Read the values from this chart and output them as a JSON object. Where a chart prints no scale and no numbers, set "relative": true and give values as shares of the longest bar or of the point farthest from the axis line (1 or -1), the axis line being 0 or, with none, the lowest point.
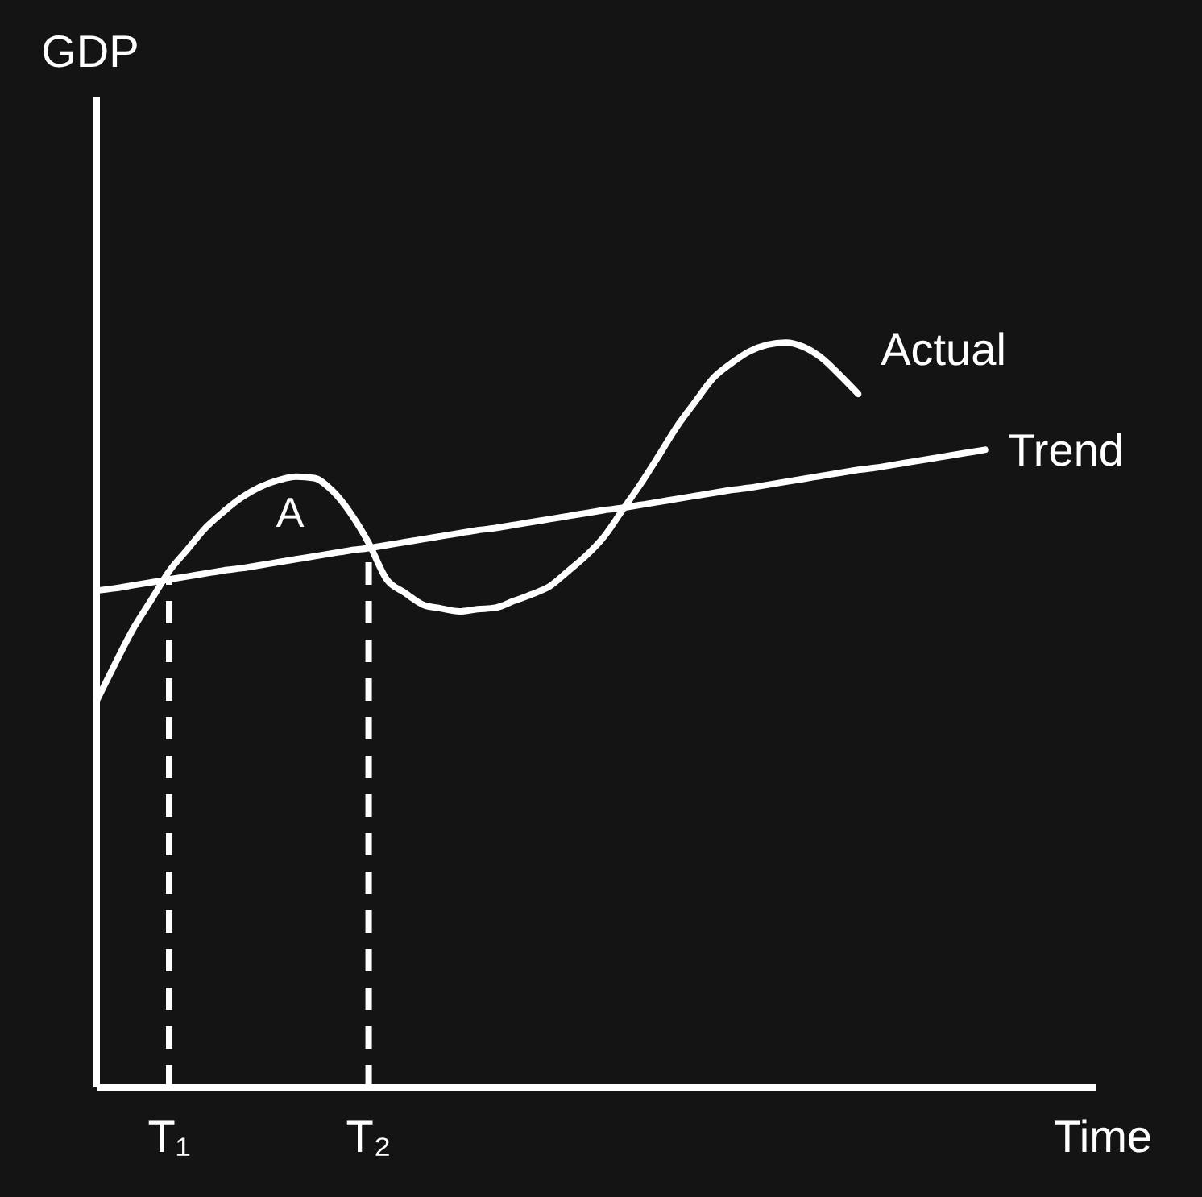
{
  "chart_data": {
    "type": "line",
    "relative": true,
    "xlabel": "Time",
    "categories": [
      null,
      null,
      null,
      null,
      "T₁",
      null,
      null,
      null,
      null,
      null,
      null,
      null,
      null,
      null,
      null,
      "T₂",
      null,
      null,
      null,
      null,
      null,
      null,
      null,
      null,
      null,
      null,
      null,
      null,
      null,
      null,
      null,
      null,
      null,
      null,
      null,
      null,
      null,
      null,
      null,
      null,
      null,
      null,
      null,
      null,
      null,
      null,
      null,
      null,
      null,
      null,
      null,
      null,
      null,
      null,
      null,
      null
    ],
    "grid": false,
    "legend": false,
    "marker": "none",
    "series": [
      {
        "name": "Actual",
        "color": "#ffffff",
        "values": [
          0.519,
          0.568,
          0.615,
          0.654,
          0.693,
          0.722,
          0.751,
          0.773,
          0.792,
          0.806,
          0.815,
          0.82,
          0.818,
          0.801,
          0.771,
          0.731,
          0.682,
          0.664,
          0.648,
          0.643,
          0.639,
          0.642,
          0.644,
          0.653,
          0.662,
          0.673,
          0.693,
          0.714,
          0.74,
          0.775,
          0.81,
          0.848,
          0.887,
          0.92,
          0.952,
          0.972,
          0.988,
          0.997,
          1.0,
          0.994,
          0.979,
          0.956,
          0.931,
          null,
          null,
          null,
          null,
          null,
          null,
          null,
          null,
          null,
          null,
          null,
          null,
          null
        ]
      },
      {
        "name": "Trend",
        "color": "#ffffff",
        "values": [
          0.667,
          0.67,
          0.674,
          0.678,
          0.682,
          0.686,
          0.69,
          0.694,
          0.697,
          0.701,
          0.705,
          0.709,
          0.713,
          0.717,
          0.721,
          0.724,
          0.728,
          0.732,
          0.736,
          0.74,
          0.744,
          0.748,
          0.751,
          0.755,
          0.759,
          0.763,
          0.767,
          0.771,
          0.775,
          0.778,
          0.782,
          0.786,
          0.79,
          0.794,
          0.798,
          0.802,
          0.805,
          0.809,
          0.813,
          0.817,
          0.821,
          0.825,
          0.829,
          0.832,
          0.836,
          0.84,
          0.844,
          0.848,
          0.852,
          0.856,
          null,
          null,
          null,
          null,
          null,
          null
        ]
      }
    ],
    "ref_lines": [
      {
        "axis": "x",
        "value": "T₁",
        "line_style": "dashed",
        "color": "#ffffff"
      },
      {
        "axis": "x",
        "value": "T₂",
        "line_style": "dashed",
        "color": "#ffffff"
      }
    ],
    "annotations": [
      "GDP",
      "A"
    ]
  }
}
